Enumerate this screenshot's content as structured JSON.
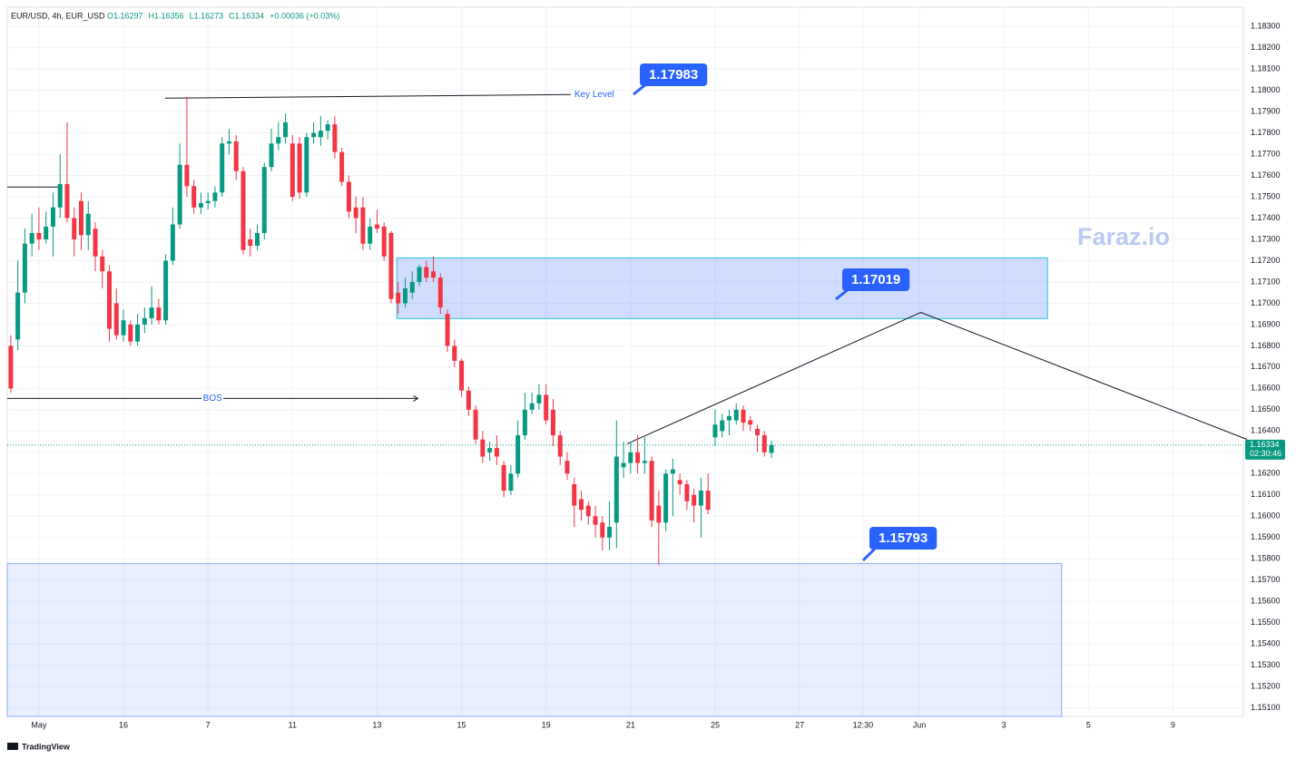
{
  "chart_data": {
    "type": "candlestick",
    "header": {
      "symbol": "EUR/USD, 4h, EUR_USD",
      "quote": [
        {
          "value": 1.16297,
          "label": "O1.16297"
        },
        {
          "value": 1.16356,
          "label": "H1.16356"
        },
        {
          "value": 1.16273,
          "label": "L1.16273"
        },
        {
          "value": 1.16334,
          "label": "C1.16334"
        },
        {
          "value": 0.00036,
          "label": "+0.00036 (+0.03%)"
        }
      ]
    },
    "up_color": "#089981",
    "down_color": "#f23645",
    "open": [
      1.168,
      1.1683,
      1.1705,
      1.1728,
      1.1733,
      1.173,
      1.1736,
      1.1745,
      1.1756,
      1.174,
      1.1748,
      1.1732,
      1.1735,
      1.1722,
      1.1715,
      1.17,
      1.1685,
      1.169,
      1.1682,
      1.169,
      1.1693,
      1.1698,
      1.1692,
      1.172,
      1.1737,
      1.1765,
      1.1755,
      1.1745,
      1.1747,
      1.1748,
      1.1752,
      1.1775,
      1.1776,
      1.1762,
      1.173,
      1.1727,
      1.1733,
      1.1764,
      1.1775,
      1.1778,
      1.1775,
      1.1775,
      1.1752,
      1.1778,
      1.1778,
      1.1781,
      1.1784,
      1.1771,
      1.1757,
      1.1745,
      1.1745,
      1.1728,
      1.1737,
      1.1736,
      1.1733,
      1.1705,
      1.17,
      1.1705,
      1.171,
      1.1717,
      1.1715,
      1.1712,
      1.1695,
      1.168,
      1.1673,
      1.1659,
      1.165,
      1.1636,
      1.163,
      1.1632,
      1.1624,
      1.1612,
      1.162,
      1.1638,
      1.165,
      1.1653,
      1.1657,
      1.165,
      1.1638,
      1.1626,
      1.1615,
      1.1608,
      1.1605,
      1.16,
      1.1597,
      1.159,
      1.1597,
      1.1623,
      1.1625,
      1.163,
      1.1625,
      1.1626,
      1.1605,
      1.1597,
      1.162,
      1.1617,
      1.1615,
      1.161,
      1.1605,
      1.1612,
      1.1637,
      1.164,
      1.1645,
      1.1645,
      1.165,
      1.1645,
      1.1641,
      1.1638,
      1.16297
    ],
    "high": [
      1.1685,
      1.172,
      1.1735,
      1.1742,
      1.1745,
      1.1743,
      1.1752,
      1.177,
      1.1785,
      1.1745,
      1.1752,
      1.1748,
      1.1738,
      1.1725,
      1.1718,
      1.1707,
      1.1697,
      1.1692,
      1.1695,
      1.1698,
      1.1708,
      1.1702,
      1.1723,
      1.1745,
      1.1775,
      1.1797,
      1.1758,
      1.1752,
      1.1752,
      1.1755,
      1.1778,
      1.1782,
      1.1779,
      1.1764,
      1.1735,
      1.1737,
      1.1766,
      1.1782,
      1.1785,
      1.1789,
      1.1779,
      1.1778,
      1.178,
      1.1785,
      1.1788,
      1.1786,
      1.1788,
      1.1773,
      1.176,
      1.175,
      1.175,
      1.174,
      1.1744,
      1.1738,
      1.1734,
      1.171,
      1.1712,
      1.1715,
      1.1718,
      1.172,
      1.1722,
      1.1714,
      1.1697,
      1.1683,
      1.1674,
      1.1661,
      1.1652,
      1.164,
      1.1635,
      1.1638,
      1.1626,
      1.1624,
      1.1645,
      1.1658,
      1.1658,
      1.1662,
      1.1662,
      1.1655,
      1.164,
      1.163,
      1.1618,
      1.1612,
      1.1607,
      1.1605,
      1.16,
      1.1607,
      1.1645,
      1.1635,
      1.1635,
      1.1638,
      1.1637,
      1.1628,
      1.1612,
      1.1622,
      1.1627,
      1.162,
      1.1617,
      1.1613,
      1.1618,
      1.162,
      1.165,
      1.1648,
      1.165,
      1.1653,
      1.1652,
      1.1647,
      1.1643,
      1.164,
      1.16356
    ],
    "low": [
      1.1658,
      1.1678,
      1.17,
      1.1722,
      1.1725,
      1.1728,
      1.1722,
      1.174,
      1.1738,
      1.1722,
      1.1725,
      1.1725,
      1.1715,
      1.1707,
      1.1682,
      1.1683,
      1.1682,
      1.168,
      1.168,
      1.1686,
      1.169,
      1.169,
      1.169,
      1.1718,
      1.1735,
      1.175,
      1.1742,
      1.1742,
      1.1744,
      1.1745,
      1.175,
      1.177,
      1.1758,
      1.1723,
      1.1722,
      1.1725,
      1.173,
      1.1762,
      1.1772,
      1.1775,
      1.1748,
      1.1749,
      1.175,
      1.1775,
      1.1774,
      1.1777,
      1.1768,
      1.1755,
      1.174,
      1.1733,
      1.1725,
      1.1725,
      1.1733,
      1.172,
      1.17,
      1.1695,
      1.1698,
      1.1702,
      1.1708,
      1.171,
      1.171,
      1.1695,
      1.1677,
      1.167,
      1.1656,
      1.1647,
      1.1634,
      1.1625,
      1.1626,
      1.1624,
      1.1609,
      1.161,
      1.1618,
      1.1636,
      1.1648,
      1.165,
      1.1643,
      1.1633,
      1.1624,
      1.1617,
      1.1595,
      1.1598,
      1.1596,
      1.159,
      1.1584,
      1.1584,
      1.1585,
      1.1618,
      1.162,
      1.162,
      1.162,
      1.1595,
      1.1577,
      1.1593,
      1.16,
      1.161,
      1.1603,
      1.1597,
      1.159,
      1.1601,
      1.1633,
      1.1637,
      1.1638,
      1.1643,
      1.164,
      1.164,
      1.163,
      1.1628,
      1.16273
    ],
    "close": [
      1.166,
      1.1705,
      1.1728,
      1.1733,
      1.173,
      1.1736,
      1.1745,
      1.1756,
      1.174,
      1.173,
      1.1732,
      1.1742,
      1.1722,
      1.1715,
      1.1688,
      1.1685,
      1.1692,
      1.1682,
      1.169,
      1.1693,
      1.1698,
      1.1692,
      1.172,
      1.1737,
      1.1765,
      1.1755,
      1.1745,
      1.1747,
      1.1748,
      1.1752,
      1.1775,
      1.1776,
      1.1762,
      1.1725,
      1.1727,
      1.1733,
      1.1764,
      1.1775,
      1.1778,
      1.1785,
      1.175,
      1.1752,
      1.1778,
      1.178,
      1.1781,
      1.1784,
      1.1771,
      1.1757,
      1.1743,
      1.174,
      1.1728,
      1.1736,
      1.1735,
      1.1722,
      1.1702,
      1.17,
      1.1707,
      1.171,
      1.1717,
      1.1712,
      1.1712,
      1.1698,
      1.168,
      1.1673,
      1.1659,
      1.165,
      1.1636,
      1.1628,
      1.1632,
      1.1628,
      1.1612,
      1.162,
      1.1638,
      1.165,
      1.1653,
      1.1657,
      1.1645,
      1.1638,
      1.1628,
      1.162,
      1.1605,
      1.1603,
      1.16,
      1.1596,
      1.159,
      1.1595,
      1.1628,
      1.1625,
      1.163,
      1.1625,
      1.1626,
      1.1598,
      1.1597,
      1.162,
      1.1622,
      1.1615,
      1.1607,
      1.1605,
      1.1612,
      1.1603,
      1.1643,
      1.1645,
      1.1647,
      1.165,
      1.1644,
      1.1643,
      1.1638,
      1.163,
      1.16334
    ],
    "xlim": [
      -0.5,
      175
    ],
    "xticks": [
      {
        "value": 4,
        "label": "May"
      },
      16,
      {
        "value": 28,
        "label": "7"
      },
      {
        "value": 40,
        "label": "11"
      },
      {
        "value": 52,
        "label": "13"
      },
      {
        "value": 64,
        "label": "15"
      },
      {
        "value": 76,
        "label": "19"
      },
      {
        "value": 88,
        "label": "21"
      },
      {
        "value": 100,
        "label": "25"
      },
      {
        "value": 112,
        "label": "27"
      },
      {
        "value": 121,
        "label": "12:30"
      },
      {
        "value": 129,
        "label": "Jun"
      },
      {
        "value": 141,
        "label": "3"
      },
      {
        "value": 153,
        "label": "5"
      },
      {
        "value": 165,
        "label": "9"
      }
    ],
    "ylim": [
      1.1506,
      1.1839
    ],
    "yticks": [
      {
        "value": 1.151,
        "label": "1.15100"
      },
      {
        "value": 1.152,
        "label": "1.15200"
      },
      {
        "value": 1.153,
        "label": "1.15300"
      },
      {
        "value": 1.154,
        "label": "1.15400"
      },
      {
        "value": 1.155,
        "label": "1.15500"
      },
      {
        "value": 1.156,
        "label": "1.15600"
      },
      {
        "value": 1.157,
        "label": "1.15700"
      },
      {
        "value": 1.158,
        "label": "1.15800"
      },
      {
        "value": 1.159,
        "label": "1.15900"
      },
      {
        "value": 1.16,
        "label": "1.16000"
      },
      {
        "value": 1.161,
        "label": "1.16100"
      },
      {
        "value": 1.162,
        "label": "1.16200"
      },
      {
        "value": 1.163,
        "label": "1.16300"
      },
      {
        "value": 1.164,
        "label": "1.16400"
      },
      {
        "value": 1.165,
        "label": "1.16500"
      },
      {
        "value": 1.166,
        "label": "1.16600"
      },
      {
        "value": 1.167,
        "label": "1.16700"
      },
      {
        "value": 1.168,
        "label": "1.16800"
      },
      {
        "value": 1.169,
        "label": "1.16900"
      },
      {
        "value": 1.17,
        "label": "1.17000"
      },
      {
        "value": 1.171,
        "label": "1.17100"
      },
      {
        "value": 1.172,
        "label": "1.17200"
      },
      {
        "value": 1.173,
        "label": "1.17300"
      },
      {
        "value": 1.174,
        "label": "1.17400"
      },
      {
        "value": 1.175,
        "label": "1.17500"
      },
      {
        "value": 1.176,
        "label": "1.17600"
      },
      {
        "value": 1.177,
        "label": "1.17700"
      },
      {
        "value": 1.178,
        "label": "1.17800"
      },
      {
        "value": 1.179,
        "label": "1.17900"
      },
      {
        "value": 1.18,
        "label": "1.18000"
      },
      {
        "value": 1.181,
        "label": "1.18100"
      },
      {
        "value": 1.182,
        "label": "1.18200"
      },
      {
        "value": 1.183,
        "label": "1.18300"
      }
    ],
    "grid": true,
    "last_price": {
      "value": 1.16334,
      "label": "1.16334"
    },
    "countdown": "02:30:46",
    "zones": [
      {
        "x": [
          54.8,
          147.2
        ],
        "y": [
          1.17213,
          1.16928
        ]
      },
      {
        "x": [
          -0.5,
          149.2
        ],
        "y": [
          1.15778,
          1.1506
        ]
      }
    ],
    "lines": [
      {
        "label": "Key Level",
        "points": [
          [
            21.9,
            1.17963
          ],
          [
            79.5,
            1.1798
          ]
        ]
      },
      {
        "label": "BOS",
        "points": [
          [
            -0.5,
            1.16553
          ],
          [
            57.8,
            1.16553
          ]
        ]
      },
      {
        "points": [
          [
            -0.5,
            1.17546
          ],
          [
            7,
            1.17546
          ]
        ]
      },
      {
        "points": [
          [
            87.5,
            1.1634
          ],
          [
            129.2,
            1.16957
          ],
          [
            175.5,
            1.16361
          ]
        ]
      }
    ],
    "callouts": [
      {
        "value": 1.17983,
        "label": "1.17983"
      },
      {
        "value": 1.17019,
        "label": "1.17019"
      },
      {
        "value": 1.15793,
        "label": "1.15793"
      }
    ],
    "watermark": "Faraz.io",
    "brand": "TradingView"
  }
}
